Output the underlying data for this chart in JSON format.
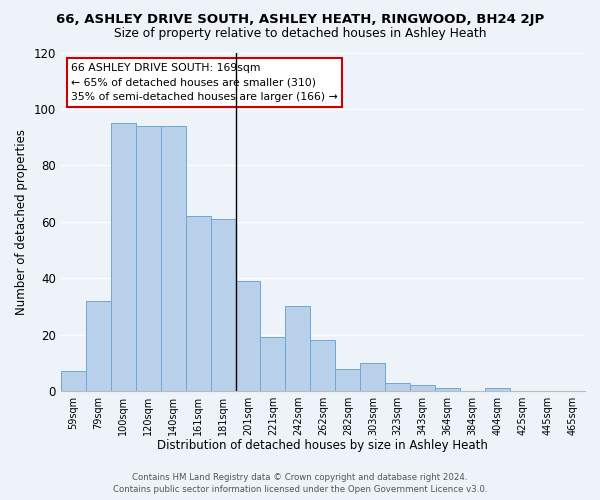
{
  "title": "66, ASHLEY DRIVE SOUTH, ASHLEY HEATH, RINGWOOD, BH24 2JP",
  "subtitle": "Size of property relative to detached houses in Ashley Heath",
  "xlabel": "Distribution of detached houses by size in Ashley Heath",
  "ylabel": "Number of detached properties",
  "categories": [
    "59sqm",
    "79sqm",
    "100sqm",
    "120sqm",
    "140sqm",
    "161sqm",
    "181sqm",
    "201sqm",
    "221sqm",
    "242sqm",
    "262sqm",
    "282sqm",
    "303sqm",
    "323sqm",
    "343sqm",
    "364sqm",
    "384sqm",
    "404sqm",
    "425sqm",
    "445sqm",
    "465sqm"
  ],
  "values": [
    7,
    32,
    95,
    94,
    94,
    62,
    61,
    39,
    19,
    30,
    18,
    8,
    10,
    3,
    2,
    1,
    0,
    1,
    0,
    0,
    0
  ],
  "bar_color": "#b8d0ea",
  "bar_edge_color": "#6aaad4",
  "ref_line_x": 6.5,
  "annotation_line1": "66 ASHLEY DRIVE SOUTH: 169sqm",
  "annotation_line2": "← 65% of detached houses are smaller (310)",
  "annotation_line3": "35% of semi-detached houses are larger (166) →",
  "annotation_box_facecolor": "#ffffff",
  "annotation_box_edgecolor": "#cc0000",
  "ylim": [
    0,
    120
  ],
  "yticks": [
    0,
    20,
    40,
    60,
    80,
    100,
    120
  ],
  "background_color": "#eef2f9",
  "grid_color": "#ffffff",
  "footer_line1": "Contains HM Land Registry data © Crown copyright and database right 2024.",
  "footer_line2": "Contains public sector information licensed under the Open Government Licence v3.0."
}
